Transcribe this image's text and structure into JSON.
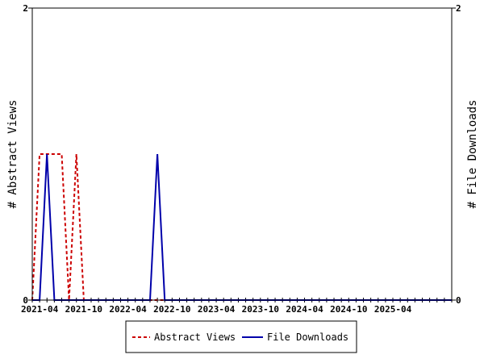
{
  "chart_data": {
    "type": "line",
    "x_tick_labels": [
      "2021-04",
      "2021-10",
      "2022-04",
      "2022-10",
      "2023-04",
      "2023-10",
      "2024-04",
      "2024-10",
      "2025-04"
    ],
    "x_range_months": [
      "2021-03",
      "2025-12"
    ],
    "left_axis": {
      "label": "# Abstract Views",
      "ylim": [
        0,
        2
      ],
      "tick_labels": [
        "0",
        "2"
      ]
    },
    "right_axis": {
      "label": "# File Downloads",
      "ylim": [
        0,
        2
      ],
      "tick_labels": [
        "0",
        "2"
      ]
    },
    "legend_position": "bottom-center",
    "grid": false,
    "series": [
      {
        "name": "Abstract Views",
        "axis": "left",
        "style": "dashed",
        "color": "#cc0000",
        "points": [
          [
            "2021-03",
            0
          ],
          [
            "2021-04",
            1
          ],
          [
            "2021-05",
            1
          ],
          [
            "2021-06",
            1
          ],
          [
            "2021-07",
            1
          ],
          [
            "2021-08",
            0
          ],
          [
            "2021-09",
            1
          ],
          [
            "2021-10",
            0
          ],
          [
            "2025-12",
            0
          ]
        ]
      },
      {
        "name": "File Downloads",
        "axis": "right",
        "style": "solid",
        "color": "#0000aa",
        "points": [
          [
            "2021-03",
            0
          ],
          [
            "2021-04",
            0
          ],
          [
            "2021-05",
            1
          ],
          [
            "2021-06",
            0
          ],
          [
            "2022-07",
            0
          ],
          [
            "2022-08",
            1
          ],
          [
            "2022-09",
            0
          ],
          [
            "2025-12",
            0
          ]
        ]
      }
    ]
  },
  "legend": {
    "abstract_views_label": "Abstract Views",
    "file_downloads_label": "File Downloads"
  }
}
